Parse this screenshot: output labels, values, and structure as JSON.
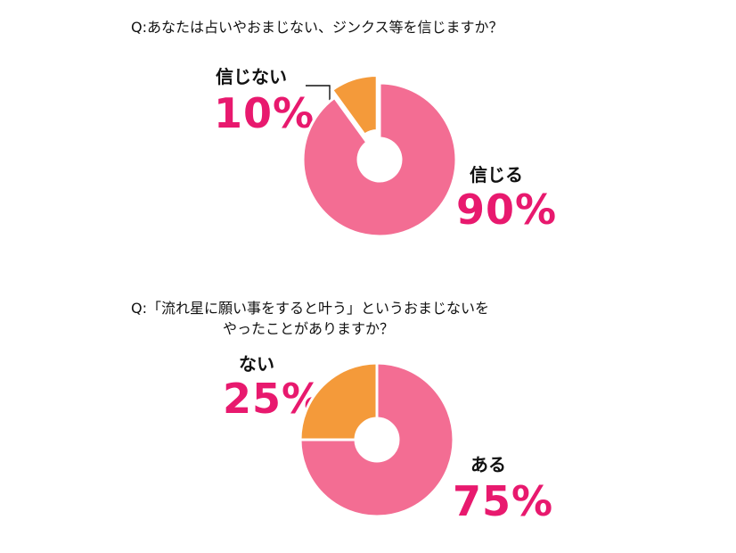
{
  "chart_data": [
    {
      "type": "pie",
      "title": "Q:あなたは占いやおまじない、ジンクス等を信じますか？",
      "categories": [
        "信じる",
        "信じない"
      ],
      "values": [
        90,
        10
      ],
      "value_labels": [
        "90%",
        "10%"
      ],
      "colors": [
        "#f36d93",
        "#f49a3a"
      ],
      "donut": true
    },
    {
      "type": "pie",
      "title_line1": "Q:「流れ星に願い事をすると叶う」というおまじないを",
      "title_line2": "やったことがありますか？",
      "categories": [
        "ある",
        "ない"
      ],
      "values": [
        75,
        25
      ],
      "value_labels": [
        "75%",
        "25%"
      ],
      "colors": [
        "#f36d93",
        "#f49a3a"
      ],
      "donut": true
    }
  ]
}
